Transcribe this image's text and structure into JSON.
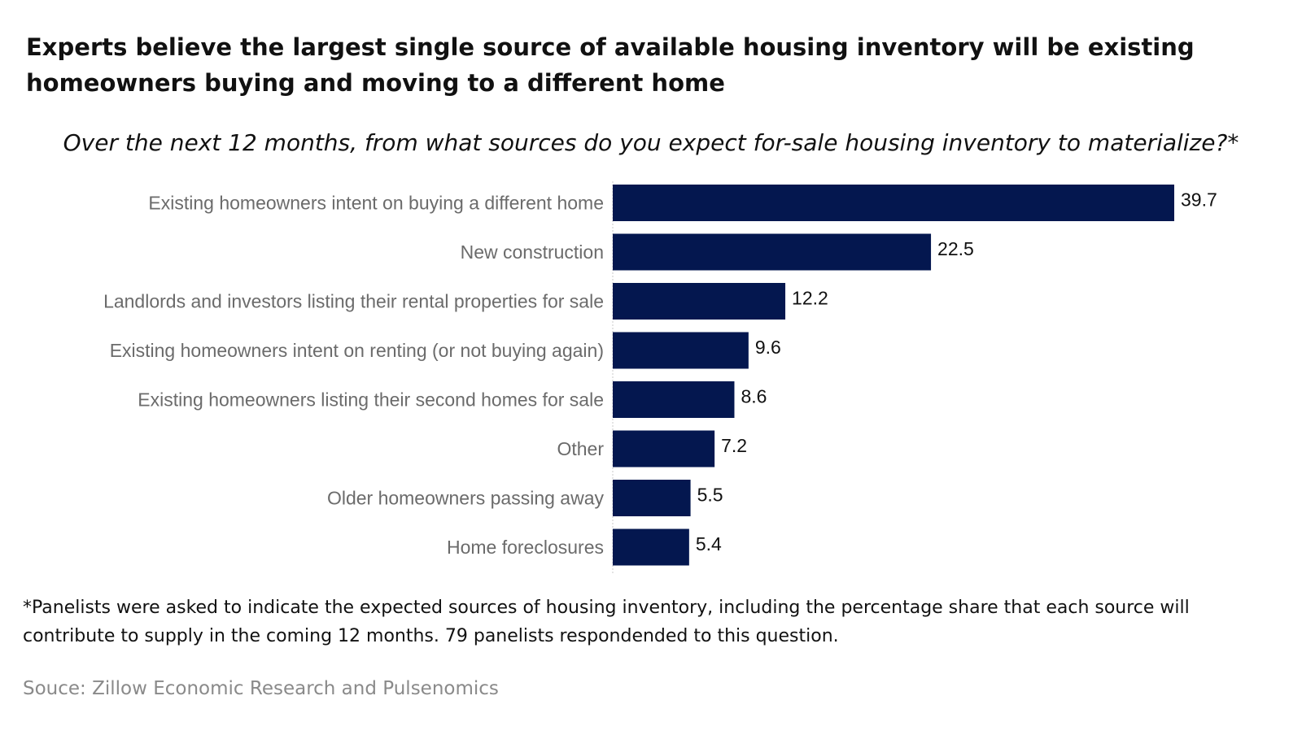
{
  "header": {
    "title": "Experts believe the largest single source of available housing inventory will be existing homeowners buying and moving to a different home"
  },
  "chart_data": {
    "type": "bar",
    "orientation": "horizontal",
    "title": "Over the next 12 months, from what sources do you expect for-sale housing inventory to materialize?*",
    "categories": [
      "Existing homeowners intent on buying a different home",
      "New construction",
      "Landlords and investors listing their rental properties for sale",
      "Existing homeowners intent on renting (or not buying again)",
      "Existing homeowners listing their second homes for sale",
      "Other",
      "Older homeowners passing away",
      "Home foreclosures"
    ],
    "values": [
      39.7,
      22.5,
      12.2,
      9.6,
      8.6,
      7.2,
      5.5,
      5.4
    ],
    "value_labels": [
      "39.7",
      "22.5",
      "12.2",
      "9.6",
      "8.6",
      "7.2",
      "5.5",
      "5.4"
    ],
    "xlim": [
      0,
      40
    ],
    "grid": false,
    "bar_color": "#04174f"
  },
  "footer": {
    "footnote": "*Panelists were asked to indicate the expected sources of housing inventory, including the percentage share that each source will contribute to supply in the coming 12 months. 79 panelists respondended to this question.",
    "source": "Souce: Zillow Economic Research and Pulsenomics"
  }
}
